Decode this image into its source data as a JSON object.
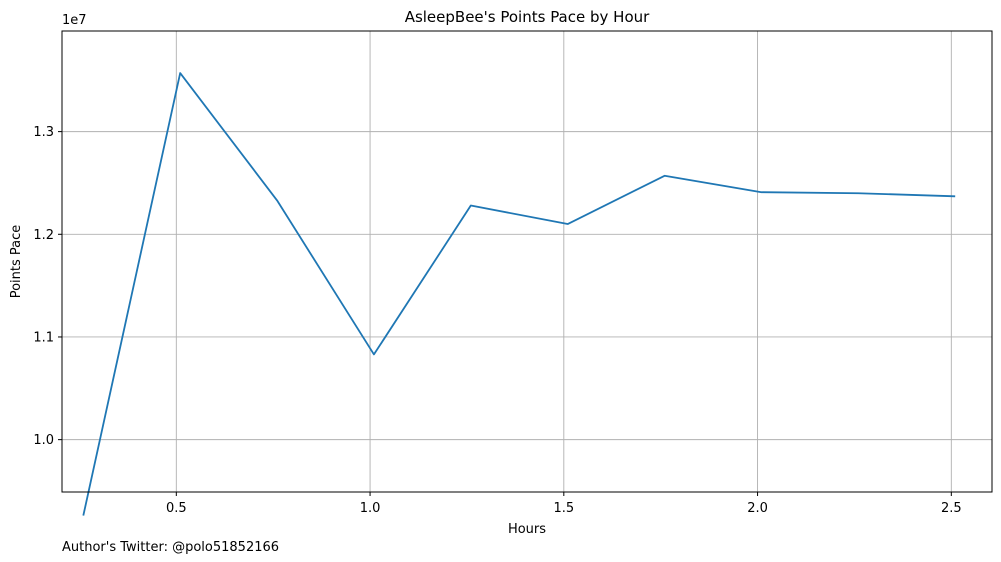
{
  "chart_data": {
    "type": "line",
    "title": "AsleepBee's Points Pace by Hour",
    "xlabel": "Hours",
    "ylabel": "Points Pace",
    "y_scale_label": "1e7",
    "xlim": [
      0.205,
      2.605
    ],
    "ylim": [
      9.49,
      13.98
    ],
    "x_ticks": [
      0.5,
      1.0,
      1.5,
      2.0,
      2.5
    ],
    "x_tick_labels": [
      "0.5",
      "1.0",
      "1.5",
      "2.0",
      "2.5"
    ],
    "y_ticks": [
      10.0,
      11.0,
      12.0,
      13.0
    ],
    "y_tick_labels": [
      "1.0",
      "1.1",
      "1.2",
      "1.3"
    ],
    "grid": true,
    "series": [
      {
        "color": "#1f77b4",
        "x": [
          0.26,
          0.51,
          0.76,
          1.01,
          1.26,
          1.51,
          1.76,
          2.01,
          2.26,
          2.51
        ],
        "y": [
          9.26,
          13.57,
          12.33,
          10.83,
          12.28,
          12.1,
          12.57,
          12.41,
          12.4,
          12.37
        ]
      }
    ]
  },
  "footer": {
    "author_text": "Author's Twitter: @polo51852166"
  }
}
